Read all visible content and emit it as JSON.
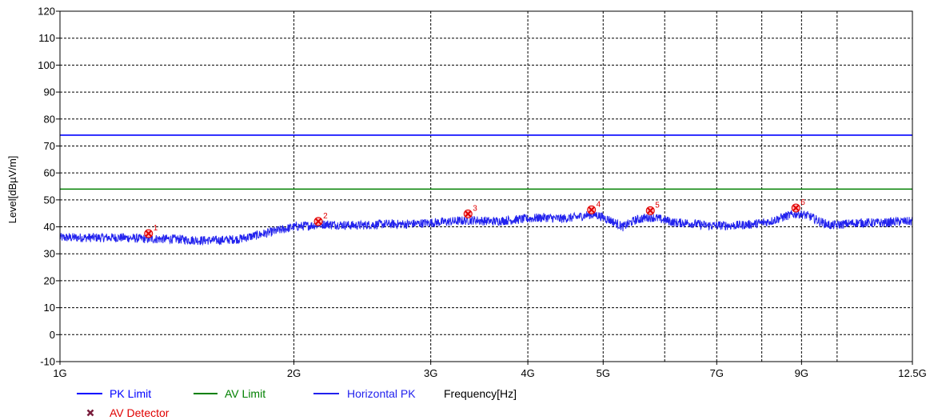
{
  "chart_data": {
    "type": "line",
    "xlabel": "Frequency[Hz]",
    "ylabel": "Level[dBµV/m]",
    "x_scale": "log",
    "xlim": [
      1,
      12.5
    ],
    "ylim": [
      -10,
      120
    ],
    "y_ticks": [
      -10,
      0,
      10,
      20,
      30,
      40,
      50,
      60,
      70,
      80,
      90,
      100,
      110,
      120
    ],
    "x_ticks": [
      {
        "value": 1,
        "label": "1G"
      },
      {
        "value": 2,
        "label": "2G"
      },
      {
        "value": 3,
        "label": "3G"
      },
      {
        "value": 4,
        "label": "4G"
      },
      {
        "value": 5,
        "label": "5G"
      },
      {
        "value": 7,
        "label": "7G"
      },
      {
        "value": 9,
        "label": "9G"
      },
      {
        "value": 12.5,
        "label": "12.5G"
      }
    ],
    "x_grid": [
      1,
      2,
      3,
      4,
      5,
      6,
      7,
      8,
      9,
      10,
      12.5
    ],
    "grid": true,
    "series": [
      {
        "name": "PK Limit",
        "color": "#0000ff",
        "x": [
          1,
          12.5
        ],
        "y": [
          74,
          74
        ]
      },
      {
        "name": "AV Limit",
        "color": "#008000",
        "x": [
          1,
          12.5
        ],
        "y": [
          54,
          54
        ]
      },
      {
        "name": "Horizontal PK",
        "color": "#2222ee",
        "x": [
          1.0,
          1.1,
          1.2,
          1.3,
          1.4,
          1.5,
          1.6,
          1.7,
          1.8,
          1.9,
          2.0,
          2.1,
          2.2,
          2.4,
          2.6,
          2.8,
          3.0,
          3.2,
          3.4,
          3.6,
          3.8,
          4.0,
          4.2,
          4.4,
          4.6,
          4.8,
          4.9,
          5.1,
          5.3,
          5.5,
          5.7,
          5.8,
          6.0,
          6.2,
          6.4,
          6.6,
          6.8,
          7.0,
          7.4,
          7.8,
          8.2,
          8.6,
          8.9,
          9.2,
          9.5,
          9.8,
          10.2,
          10.6,
          11.0,
          11.5,
          12.0,
          12.5
        ],
        "y": [
          36,
          36,
          36,
          35.5,
          35.5,
          35,
          35,
          35.5,
          37,
          38.5,
          40,
          40.5,
          41,
          40.5,
          41,
          41,
          41.5,
          42,
          42.5,
          42,
          42.5,
          43,
          43.5,
          43,
          43.5,
          44.5,
          44.5,
          42.5,
          40,
          42.5,
          43.5,
          43.5,
          42.5,
          41.5,
          41.5,
          41,
          40.5,
          40.5,
          40.5,
          41,
          42,
          44,
          45,
          44,
          42,
          40.5,
          41,
          41.5,
          41.5,
          41.5,
          42,
          42
        ]
      }
    ],
    "markers": {
      "name": "AV Detector",
      "color": "#e00000",
      "points": [
        {
          "label": "1",
          "x": 1.3,
          "y": 37.5
        },
        {
          "label": "2",
          "x": 2.15,
          "y": 42
        },
        {
          "label": "3",
          "x": 3.35,
          "y": 44.8
        },
        {
          "label": "4",
          "x": 4.83,
          "y": 46.3
        },
        {
          "label": "5",
          "x": 5.75,
          "y": 46
        },
        {
          "label": "6",
          "x": 8.85,
          "y": 47
        }
      ]
    },
    "legend": {
      "placement": "bottom-left"
    }
  }
}
